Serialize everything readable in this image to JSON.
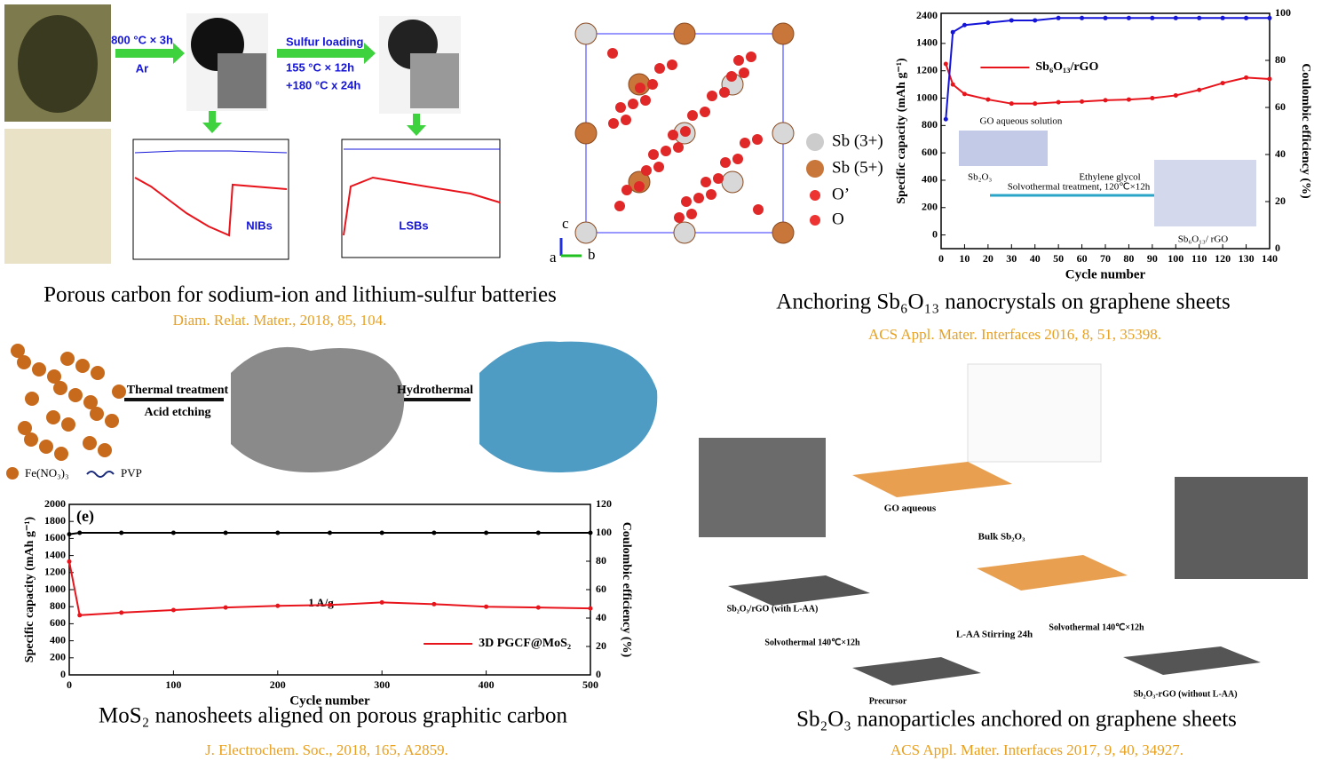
{
  "panels": {
    "top_left": {
      "caption": "Porous carbon for sodium-ion and lithium-sulfur batteries",
      "citation": "Diam. Relat. Mater., 2018, 85, 104.",
      "step1": [
        "800 °C × 3h",
        "Ar"
      ],
      "step2": [
        "Sulfur loading",
        "155 °C × 12h",
        "+180 °C x 24h"
      ],
      "plot_labels": [
        "NIBs",
        "LSBs"
      ]
    },
    "top_middle": {
      "legend": [
        "Sb (3+)",
        "Sb (5+)",
        "O’",
        "O"
      ],
      "axes": [
        "c",
        "a",
        "b"
      ]
    },
    "top_right": {
      "caption": "Anchoring Sb₆O₁₃ nanocrystals on graphene sheets",
      "citation": "ACS Appl. Mater. Interfaces 2016,  8, 51, 35398.",
      "inset": [
        "GO aqueous solution",
        "Ethylene glycol",
        "Solvothermal treatment, 120℃×12h",
        "Sb₂O₃",
        "Sb₆O₁₃/ rGO"
      ]
    },
    "bottom_left": {
      "caption": "MoS₂ nanosheets aligned on porous graphitic carbon",
      "citation": "J. Electrochem. Soc., 2018, 165, A2859.",
      "scheme": [
        "Thermal treatment",
        "Acid etching",
        "Hydrothermal",
        "Fe(NO₃)₃",
        "PVP"
      ]
    },
    "bottom_right": {
      "caption": "Sb₂O₃ nanoparticles anchored on graphene sheets",
      "citation": "ACS Appl. Mater. Interfaces 2017,  9, 40, 34927.",
      "scheme": [
        "GO aqueous",
        "Bulk Sb₂O₃",
        "L-AA Stirring 24h",
        "Solvothermal 140℃×12h",
        "Precursor",
        "Sb₂O₃/rGO (with L-AA)",
        "Solvothermal 140℃×12h",
        "Sb₂O₃-rGO (without L-AA)"
      ]
    }
  },
  "chart_data": [
    {
      "type": "line",
      "xlabel": "Cycle number",
      "ylabel": "Specific capacity (mAh g⁻¹)",
      "y2label": "Coulombic efficiency (%)",
      "x": [
        2,
        5,
        10,
        20,
        30,
        40,
        50,
        60,
        70,
        80,
        90,
        100,
        110,
        120,
        130,
        140
      ],
      "xlim": [
        0,
        140
      ],
      "xticks": [
        0,
        10,
        20,
        30,
        40,
        50,
        60,
        70,
        80,
        90,
        100,
        110,
        120,
        130,
        140
      ],
      "ylim": [
        -100,
        1620
      ],
      "yticks": [
        0,
        200,
        400,
        600,
        800,
        1000,
        1200,
        1400
      ],
      "break_ticks": [
        2400
      ],
      "y2lim": [
        0,
        100
      ],
      "y2ticks": [
        0,
        20,
        40,
        60,
        80,
        100
      ],
      "series": [
        {
          "name": "Sb₆O₁₃/rGO",
          "color": "#e8141c",
          "values": [
            1250,
            1100,
            1030,
            990,
            960,
            960,
            970,
            975,
            985,
            990,
            1000,
            1020,
            1060,
            1110,
            1150,
            1140
          ]
        },
        {
          "name": "Coulombic efficiency",
          "color": "#1515d8",
          "axis": "y2",
          "values": [
            55,
            92,
            95,
            96,
            97,
            97,
            98,
            98,
            98,
            98,
            98,
            98,
            98,
            98,
            98,
            98
          ]
        }
      ]
    },
    {
      "type": "line",
      "xlabel": "Cycle number",
      "ylabel": "Specific capacity (mAh g⁻¹)",
      "y2label": "Coulombic efficiency (%)",
      "panel_label": "(e)",
      "annotation": "1 A/g",
      "x": [
        0,
        10,
        50,
        100,
        150,
        200,
        250,
        300,
        350,
        400,
        450,
        500
      ],
      "xlim": [
        0,
        500
      ],
      "xticks": [
        0,
        100,
        200,
        300,
        400,
        500
      ],
      "ylim": [
        0,
        2000
      ],
      "yticks": [
        0,
        200,
        400,
        600,
        800,
        1000,
        1200,
        1400,
        1600,
        1800,
        2000
      ],
      "y2lim": [
        0,
        120
      ],
      "y2ticks": [
        0,
        20,
        40,
        60,
        80,
        100,
        120
      ],
      "series": [
        {
          "name": "3D PGCF@MoS₂",
          "color": "#e8141c",
          "values": [
            1330,
            700,
            730,
            760,
            790,
            810,
            820,
            850,
            830,
            800,
            790,
            780
          ]
        },
        {
          "name": "Coulombic efficiency",
          "color": "#000000",
          "axis": "y2",
          "values": [
            99,
            100,
            100,
            100,
            100,
            100,
            100,
            100,
            100,
            100,
            100,
            100
          ]
        }
      ]
    }
  ]
}
